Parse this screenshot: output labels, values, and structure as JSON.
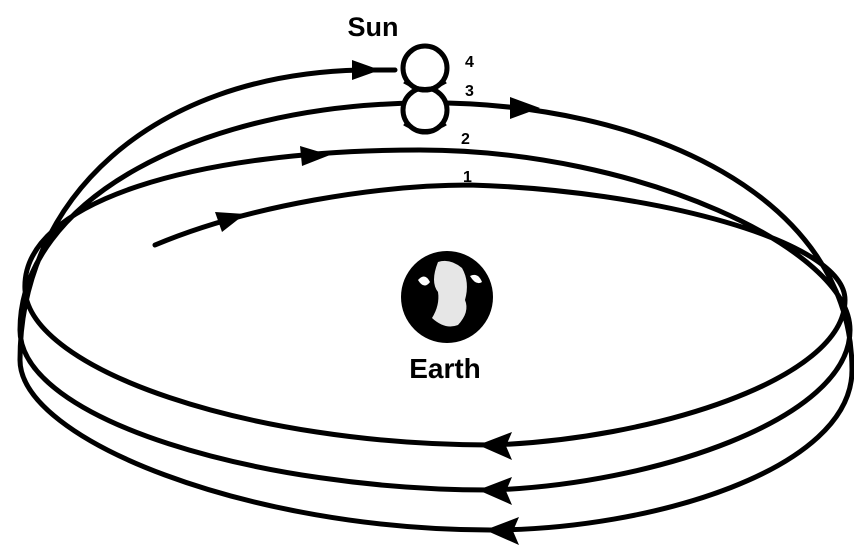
{
  "sun_label": "Sun",
  "earth_label": "Earth",
  "orbit_labels": [
    "1",
    "2",
    "3",
    "4"
  ]
}
